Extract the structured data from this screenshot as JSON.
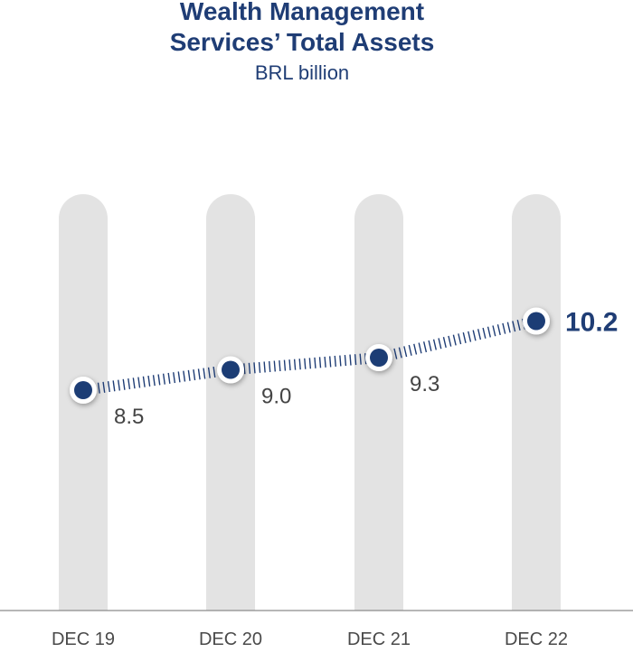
{
  "chart_data": {
    "type": "line",
    "title_lines": [
      "Wealth Management",
      "Services’ Total Assets"
    ],
    "subtitle": "BRL billion",
    "categories": [
      "DEC 19",
      "DEC 20",
      "DEC 21",
      "DEC 22"
    ],
    "values": [
      8.5,
      9.0,
      9.3,
      10.2
    ],
    "value_labels": [
      "8.5",
      "9.0",
      "9.3",
      "10.2"
    ],
    "highlight_index": 3,
    "xlabel": "",
    "ylabel": "",
    "grid": false,
    "colors": {
      "series": "#1f3d75",
      "column_bg": "#e3e3e3",
      "axis": "#8c8c8c"
    }
  }
}
